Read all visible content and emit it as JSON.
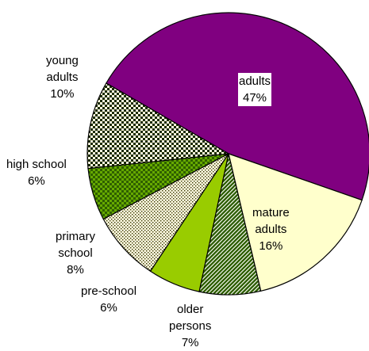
{
  "chart_data": {
    "type": "pie",
    "start_direction": "clockwise from upper-left, adults slice first",
    "slices": [
      {
        "label_lines": [
          "adults"
        ],
        "percent_text": "47%",
        "value": 47,
        "color": "#800080",
        "pattern": "solid"
      },
      {
        "label_lines": [
          "mature",
          "adults"
        ],
        "percent_text": "16%",
        "value": 16,
        "color": "#ffffcc",
        "pattern": "solid"
      },
      {
        "label_lines": [
          "older",
          "persons"
        ],
        "percent_text": "7%",
        "value": 7,
        "color": "#2f5f00",
        "pattern": "diagonal-hatch"
      },
      {
        "label_lines": [
          "pre-school"
        ],
        "percent_text": "6%",
        "value": 6,
        "color": "#99cc00",
        "pattern": "solid"
      },
      {
        "label_lines": [
          "primary",
          "school"
        ],
        "percent_text": "8%",
        "value": 8,
        "color": "#fffbe0",
        "pattern": "fine-dots"
      },
      {
        "label_lines": [
          "high school"
        ],
        "percent_text": "6%",
        "value": 6,
        "color": "#2f5f00",
        "pattern": "checker"
      },
      {
        "label_lines": [
          "young",
          "adults"
        ],
        "percent_text": "10%",
        "value": 10,
        "color": "#fffbe0",
        "pattern": "large-check"
      }
    ]
  }
}
